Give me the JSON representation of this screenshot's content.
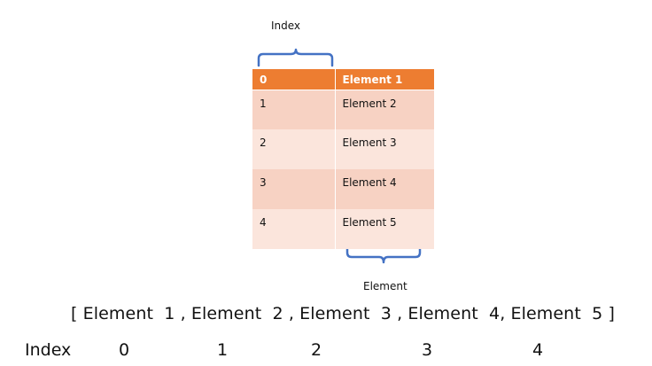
{
  "diagram": {
    "index_label": "Index",
    "element_label": "Element",
    "table": {
      "header": {
        "index": "0",
        "element": "Element  1"
      },
      "rows": [
        {
          "index": "1",
          "element": "Element  2"
        },
        {
          "index": "2",
          "element": "Element  3"
        },
        {
          "index": "3",
          "element": "Element  4"
        },
        {
          "index": "4",
          "element": "Element  5"
        }
      ]
    },
    "array_text": "[ Element  1 , Element  2 , Element  3 , Element  4, Element  5 ]",
    "index_row": {
      "label": "Index",
      "values": [
        "0",
        "1",
        "2",
        "3",
        "4"
      ]
    },
    "colors": {
      "header": "#ed7d31",
      "row_dark": "#f7d2c3",
      "row_light": "#fbe5dc",
      "brace": "#4472c4"
    }
  }
}
